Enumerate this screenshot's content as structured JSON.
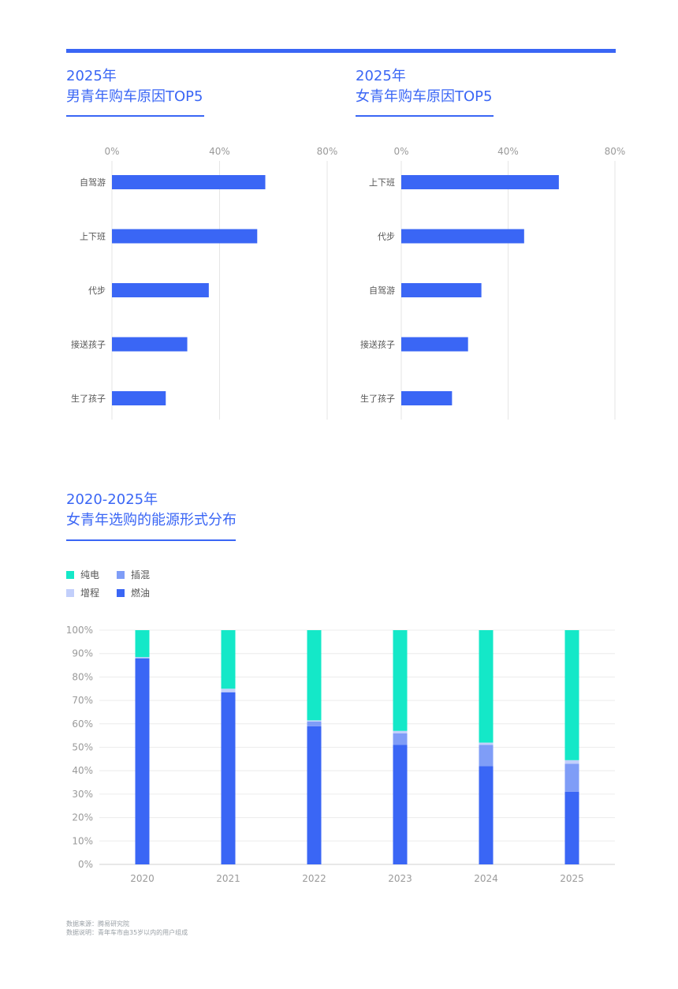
{
  "header": {
    "male_title_line1": "2025年",
    "male_title_line2": "男青年购车原因TOP5",
    "female_title_line1": "2025年",
    "female_title_line2": "女青年购车原因TOP5",
    "energy_title_line1": "2020-2025年",
    "energy_title_line2": "女青年选购的能源形式分布"
  },
  "colors": {
    "accent": "#3a66f5",
    "bar": "#3a66f5",
    "pure_electric": "#14e8c8",
    "plug_hybrid": "#7f9df7",
    "range_extender": "#c2cffb",
    "fuel": "#3a66f5"
  },
  "legend": [
    {
      "label": "纯电",
      "color": "#14e8c8"
    },
    {
      "label": "插混",
      "color": "#7f9df7"
    },
    {
      "label": "增程",
      "color": "#c2cffb"
    },
    {
      "label": "燃油",
      "color": "#3a66f5"
    }
  ],
  "footnote": {
    "source": "数据来源：腾易研究院",
    "note": "数据说明：青年车市由35岁以内的用户组成"
  },
  "chart_data": [
    {
      "type": "bar",
      "orientation": "horizontal",
      "title": "2025年 男青年购车原因TOP5",
      "categories": [
        "自驾游",
        "上下班",
        "代步",
        "接送孩子",
        "生了孩子"
      ],
      "values": [
        57,
        54,
        36,
        28,
        20
      ],
      "xlim": [
        0,
        80
      ],
      "x_ticks": [
        "0%",
        "40%",
        "80%"
      ],
      "grid": true
    },
    {
      "type": "bar",
      "orientation": "horizontal",
      "title": "2025年 女青年购车原因TOP5",
      "categories": [
        "上下班",
        "代步",
        "自驾游",
        "接送孩子",
        "生了孩子"
      ],
      "values": [
        59,
        46,
        30,
        25,
        19
      ],
      "xlim": [
        0,
        80
      ],
      "x_ticks": [
        "0%",
        "40%",
        "80%"
      ],
      "grid": true
    },
    {
      "type": "bar",
      "stacked": true,
      "title": "2020-2025年 女青年选购的能源形式分布",
      "categories": [
        "2020",
        "2021",
        "2022",
        "2023",
        "2024",
        "2025"
      ],
      "ylim": [
        0,
        100
      ],
      "y_ticks": [
        "0%",
        "10%",
        "20%",
        "30%",
        "40%",
        "50%",
        "60%",
        "70%",
        "80%",
        "90%",
        "100%"
      ],
      "series": [
        {
          "name": "燃油",
          "values": [
            88,
            73.5,
            59,
            51,
            42,
            31
          ]
        },
        {
          "name": "插混",
          "values": [
            0,
            0,
            2,
            5,
            9,
            12
          ]
        },
        {
          "name": "增程",
          "values": [
            0.5,
            1.5,
            0.5,
            1,
            1,
            1.5
          ]
        },
        {
          "name": "纯电",
          "values": [
            11.5,
            25,
            38.5,
            43,
            48,
            55.5
          ]
        }
      ],
      "legend_position": "top-left",
      "grid": true
    }
  ]
}
